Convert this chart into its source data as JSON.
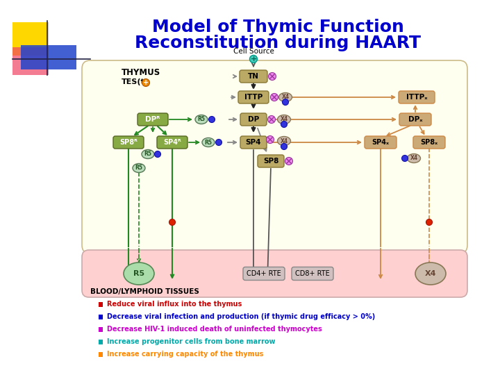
{
  "title_line1": "Model of Thymic Function",
  "title_line2": "Reconstitution during HAART",
  "title_color": "#0000CC",
  "title_fontsize": 18,
  "bg_color": "#FFFFFF",
  "thymus_bg": "#FFFFF0",
  "blood_bg": "#FFD0D0",
  "bullet_items": [
    {
      "text": "Reduce viral influx into the thymus",
      "color": "#CC0000"
    },
    {
      "text": "Decrease viral infection and production (if thymic drug efficacy > 0%)",
      "color": "#0000CC"
    },
    {
      "text": "Decrease HIV-1 induced death of uninfected thymocytes",
      "color": "#CC00CC"
    },
    {
      "text": "Increase progenitor cells from bone marrow",
      "color": "#00AAAA"
    },
    {
      "text": "Increase carrying capacity of the thymus",
      "color": "#FF8800"
    }
  ]
}
